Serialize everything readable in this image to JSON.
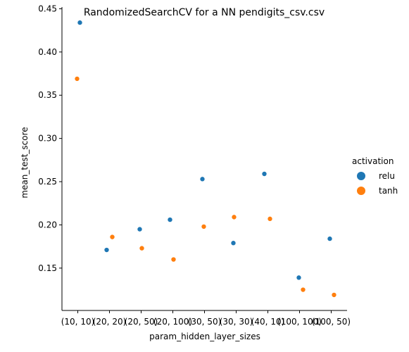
{
  "chart_data": {
    "type": "scatter",
    "title": "RandomizedSearchCV for a NN pendigits_csv.csv",
    "xlabel": "param_hidden_layer_sizes",
    "ylabel": "mean_test_score",
    "categories": [
      "(10, 10)",
      "(20, 20)",
      "(20, 50)",
      "(20, 100)",
      "(30, 50)",
      "(30, 30)",
      "(40, 10)",
      "(100, 100)",
      "(100, 50)"
    ],
    "ylim": [
      0.101,
      0.452
    ],
    "yticks": [
      0.15,
      0.2,
      0.25,
      0.3,
      0.35,
      0.4,
      0.45
    ],
    "ytick_labels": [
      "0.15",
      "0.20",
      "0.25",
      "0.30",
      "0.35",
      "0.40",
      "0.45"
    ],
    "grid": false,
    "legend": {
      "title": "activation",
      "placement": "right"
    },
    "series": [
      {
        "name": "relu",
        "color": "#1f77b4",
        "points": [
          {
            "x": 0,
            "y": 0.434
          },
          {
            "x": 1,
            "y": 0.171
          },
          {
            "x": 2,
            "y": 0.195
          },
          {
            "x": 3,
            "y": 0.206
          },
          {
            "x": 4,
            "y": 0.253
          },
          {
            "x": 5,
            "y": 0.179
          },
          {
            "x": 6,
            "y": 0.259
          },
          {
            "x": 7,
            "y": 0.139
          },
          {
            "x": 8,
            "y": 0.184
          }
        ]
      },
      {
        "name": "tanh",
        "color": "#ff7f0e",
        "points": [
          {
            "x": 0,
            "y": 0.369
          },
          {
            "x": 1,
            "y": 0.186
          },
          {
            "x": 2,
            "y": 0.173
          },
          {
            "x": 3,
            "y": 0.16
          },
          {
            "x": 4,
            "y": 0.198
          },
          {
            "x": 5,
            "y": 0.209
          },
          {
            "x": 6,
            "y": 0.207
          },
          {
            "x": 7,
            "y": 0.125
          },
          {
            "x": 8,
            "y": 0.119
          }
        ]
      }
    ]
  }
}
